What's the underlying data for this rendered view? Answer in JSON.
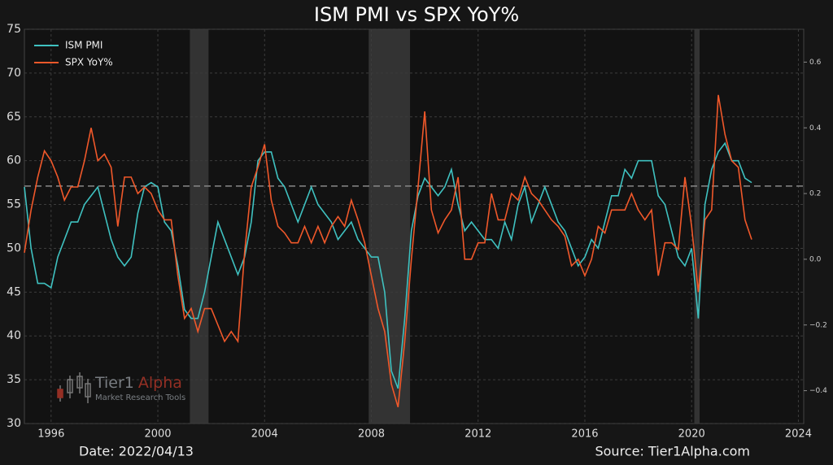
{
  "chart_data": {
    "type": "line",
    "title": "ISM PMI vs SPX YoY%",
    "date_note": "Date: 2022/04/13",
    "source": "Source: Tier1Alpha.com",
    "logo": {
      "name_part1": "Tier1",
      "name_part2": "Alpha",
      "tagline": "Market Research Tools"
    },
    "legend": "upper left",
    "grid": true,
    "xlim": [
      1995,
      2024.2
    ],
    "xticks": [
      1996,
      2000,
      2004,
      2008,
      2012,
      2016,
      2020,
      2024
    ],
    "ylim": [
      30,
      75
    ],
    "yticks": [
      30,
      35,
      40,
      45,
      50,
      55,
      60,
      65,
      70,
      75
    ],
    "y2lim": [
      -0.5,
      0.7
    ],
    "y2ticks": [
      {
        "value": -0.4,
        "label": "−0.4"
      },
      {
        "value": -0.2,
        "label": "−0.2"
      },
      {
        "value": 0,
        "label": "0.0"
      },
      0.2,
      0.4,
      0.6
    ],
    "hline": 57.1,
    "shaded_ranges": [
      [
        2001.2,
        2001.9
      ],
      [
        2007.9,
        2009.45
      ],
      [
        2020.1,
        2020.3
      ]
    ],
    "x": [
      1995,
      1995.25,
      1995.5,
      1995.75,
      1996,
      1996.25,
      1996.5,
      1996.75,
      1997,
      1997.25,
      1997.5,
      1997.75,
      1998,
      1998.25,
      1998.5,
      1998.75,
      1999,
      1999.25,
      1999.5,
      1999.75,
      2000,
      2000.25,
      2000.5,
      2000.75,
      2001,
      2001.25,
      2001.5,
      2001.75,
      2002,
      2002.25,
      2002.5,
      2002.75,
      2003,
      2003.25,
      2003.5,
      2003.75,
      2004,
      2004.25,
      2004.5,
      2004.75,
      2005,
      2005.25,
      2005.5,
      2005.75,
      2006,
      2006.25,
      2006.5,
      2006.75,
      2007,
      2007.25,
      2007.5,
      2007.75,
      2008,
      2008.25,
      2008.5,
      2008.75,
      2009,
      2009.25,
      2009.5,
      2009.75,
      2010,
      2010.25,
      2010.5,
      2010.75,
      2011,
      2011.25,
      2011.5,
      2011.75,
      2012,
      2012.25,
      2012.5,
      2012.75,
      2013,
      2013.25,
      2013.5,
      2013.75,
      2014,
      2014.25,
      2014.5,
      2014.75,
      2015,
      2015.25,
      2015.5,
      2015.75,
      2016,
      2016.25,
      2016.5,
      2016.75,
      2017,
      2017.25,
      2017.5,
      2017.75,
      2018,
      2018.25,
      2018.5,
      2018.75,
      2019,
      2019.25,
      2019.5,
      2019.75,
      2020,
      2020.25,
      2020.5,
      2020.75,
      2021,
      2021.25,
      2021.5,
      2021.75,
      2022,
      2022.25
    ],
    "series": [
      {
        "name": "ISM PMI",
        "color": "#3fc1c0",
        "values": [
          57,
          50,
          46,
          46,
          45.5,
          49,
          51,
          53,
          53,
          55,
          56,
          57,
          54,
          51,
          49,
          48,
          49,
          54,
          57,
          57.5,
          57,
          53,
          52,
          48,
          43,
          42,
          42,
          45,
          49,
          53,
          51,
          49,
          47,
          49,
          53,
          60,
          61,
          61,
          58,
          57,
          55,
          53,
          55,
          57,
          55,
          54,
          53,
          51,
          52,
          53,
          51,
          50,
          49,
          49,
          45,
          36,
          34,
          42,
          52,
          56,
          58,
          57,
          56,
          57,
          59,
          55,
          52,
          53,
          52,
          51,
          51,
          50,
          53,
          51,
          55,
          57,
          53,
          55,
          57,
          55,
          53,
          52,
          50,
          48,
          49,
          51,
          50,
          53,
          56,
          56,
          59,
          58,
          60,
          60,
          60,
          56,
          55,
          52,
          49,
          48,
          50,
          42,
          55,
          59,
          61,
          62,
          60,
          60,
          58,
          57.5
        ]
      },
      {
        "name": "SPX YoY%",
        "color": "#f0582a",
        "axis": "y2",
        "values": [
          0.02,
          0.15,
          0.25,
          0.33,
          0.3,
          0.25,
          0.18,
          0.22,
          0.22,
          0.3,
          0.4,
          0.3,
          0.32,
          0.28,
          0.1,
          0.25,
          0.25,
          0.2,
          0.22,
          0.2,
          0.15,
          0.12,
          0.12,
          -0.05,
          -0.18,
          -0.15,
          -0.22,
          -0.15,
          -0.15,
          -0.2,
          -0.25,
          -0.22,
          -0.25,
          0.02,
          0.22,
          0.28,
          0.35,
          0.18,
          0.1,
          0.08,
          0.05,
          0.05,
          0.1,
          0.05,
          0.1,
          0.05,
          0.1,
          0.13,
          0.1,
          0.18,
          0.12,
          0.05,
          -0.05,
          -0.15,
          -0.22,
          -0.38,
          -0.45,
          -0.25,
          0.0,
          0.22,
          0.45,
          0.15,
          0.08,
          0.12,
          0.15,
          0.25,
          0.0,
          0.0,
          0.05,
          0.05,
          0.2,
          0.12,
          0.12,
          0.2,
          0.18,
          0.25,
          0.2,
          0.18,
          0.15,
          0.12,
          0.1,
          0.07,
          -0.02,
          0.0,
          -0.05,
          0.0,
          0.1,
          0.08,
          0.15,
          0.15,
          0.15,
          0.2,
          0.15,
          0.12,
          0.15,
          -0.05,
          0.05,
          0.05,
          0.03,
          0.25,
          0.1,
          -0.1,
          0.12,
          0.15,
          0.5,
          0.38,
          0.3,
          0.28,
          0.12,
          0.06
        ]
      }
    ]
  }
}
